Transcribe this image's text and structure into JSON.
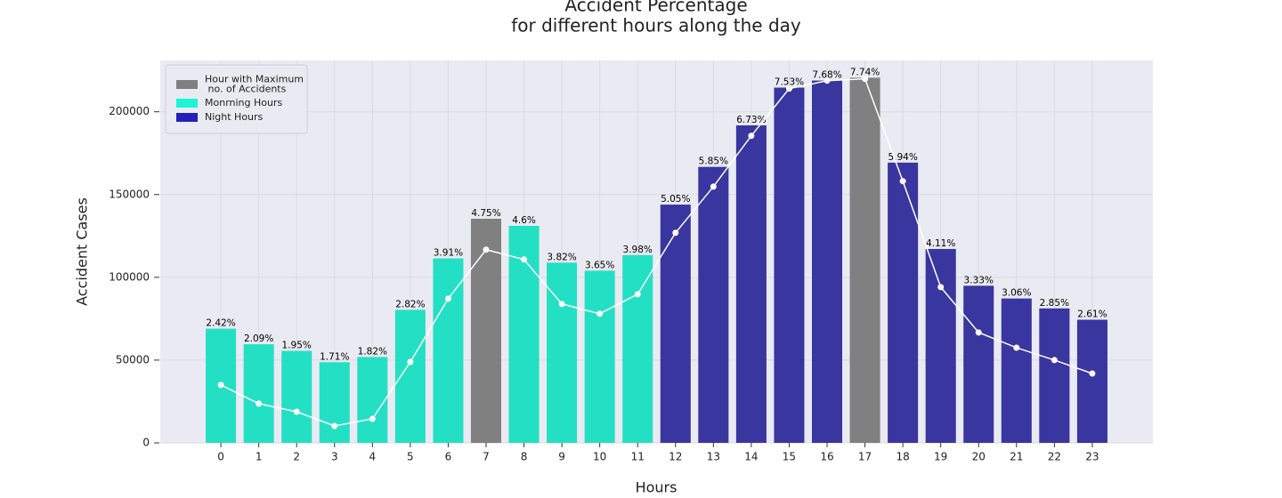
{
  "chart_data": {
    "type": "bar",
    "title": "Accident Percentage",
    "subtitle": "for different hours along the day",
    "x_label": "Hours",
    "y_label": "Accident Cases",
    "categories": [
      0,
      1,
      2,
      3,
      4,
      5,
      6,
      7,
      8,
      9,
      10,
      11,
      12,
      13,
      14,
      15,
      16,
      17,
      18,
      19,
      20,
      21,
      22,
      23
    ],
    "values": [
      68970,
      59565,
      55575,
      48735,
      51870,
      80370,
      111435,
      135375,
      131100,
      108870,
      104025,
      113430,
      143925,
      166725,
      191805,
      214605,
      218880,
      220590,
      169290,
      117135,
      94905,
      87210,
      81225,
      74385
    ],
    "bar_labels": [
      "2.42%",
      "2.09%",
      "1.95%",
      "1.71%",
      "1.82%",
      "2.82%",
      "3.91%",
      "4.75%",
      "4.6%",
      "3.82%",
      "3.65%",
      "3.98%",
      "5.05%",
      "5.85%",
      "6.73%",
      "7.53%",
      "7.68%",
      "7.74%",
      "5.94%",
      "4.11%",
      "3.33%",
      "3.06%",
      "2.85%",
      "2.61%"
    ],
    "colors": [
      "#23e0c5",
      "#23e0c5",
      "#23e0c5",
      "#23e0c5",
      "#23e0c5",
      "#23e0c5",
      "#23e0c5",
      "#808080",
      "#23e0c5",
      "#23e0c5",
      "#23e0c5",
      "#23e0c5",
      "#3936a0",
      "#3936a0",
      "#3936a0",
      "#3936a0",
      "#3936a0",
      "#808080",
      "#3936a0",
      "#3936a0",
      "#3936a0",
      "#3936a0",
      "#3936a0",
      "#3936a0"
    ],
    "line": {
      "color": "#ffffff",
      "values": [
        35000,
        23700,
        18800,
        10200,
        14500,
        48900,
        87100,
        116700,
        110800,
        83900,
        78000,
        89800,
        126900,
        154800,
        185500,
        214000,
        218800,
        219900,
        158100,
        94100,
        66700,
        57500,
        50000,
        41900
      ]
    },
    "legend": [
      {
        "label": [
          "Hour with Maximum",
          " no. of Accidents"
        ],
        "color": "#808080"
      },
      {
        "label": [
          "Monrning Hours"
        ],
        "color": "#1cf5d8"
      },
      {
        "label": [
          "Night Hours"
        ],
        "color": "#2222b8"
      }
    ],
    "ylim": [
      0,
      231000
    ],
    "yticks": [
      0,
      50000,
      100000,
      150000,
      200000
    ],
    "grid": true
  }
}
